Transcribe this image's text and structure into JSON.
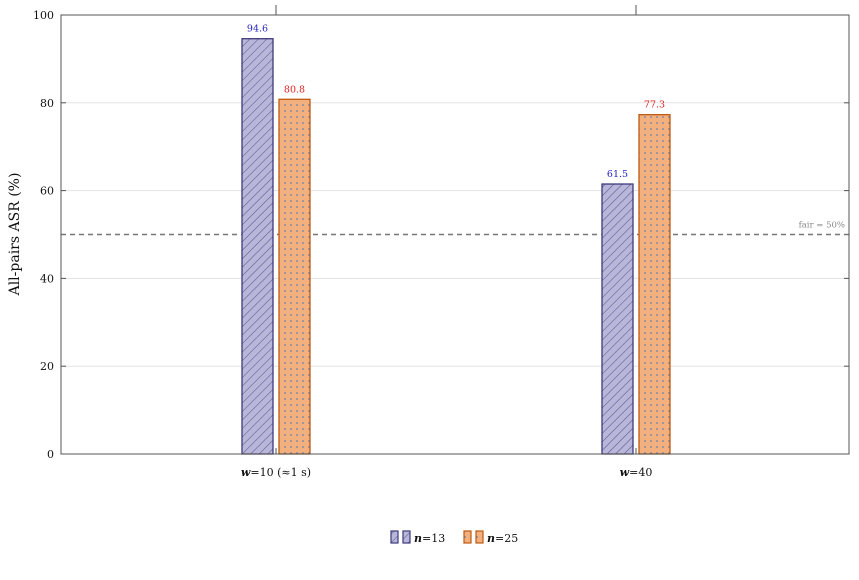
{
  "chart_data": {
    "type": "bar",
    "categories": [
      {
        "prefix": "w",
        "suffix": "=10 (≈1 s)"
      },
      {
        "prefix": "w",
        "suffix": "=40"
      }
    ],
    "series": [
      {
        "name": "n=13",
        "legend_prefix": "n",
        "legend_suffix": "=13",
        "values": [
          94.6,
          61.5
        ],
        "fill": "#b9b7d9",
        "stroke": "#3d3a7a",
        "pattern": "hatch",
        "label_color": "#2020c0"
      },
      {
        "name": "n=25",
        "legend_prefix": "n",
        "legend_suffix": "=25",
        "values": [
          80.8,
          77.3
        ],
        "fill": "#f2b07e",
        "stroke": "#c05a10",
        "pattern": "dots",
        "label_color": "#e02020"
      }
    ],
    "value_labels": [
      [
        "94.6",
        "61.5"
      ],
      [
        "80.8",
        "77.3"
      ]
    ],
    "ylabel": "All-pairs ASR (%)",
    "xlabel": "",
    "ylim": [
      0,
      100
    ],
    "yticks": [
      0,
      20,
      40,
      60,
      80,
      100
    ],
    "reference_line": {
      "value": 50,
      "label": "fair = 50%",
      "color": "#777777"
    },
    "grid": true,
    "legend_position": "bottom-center"
  }
}
